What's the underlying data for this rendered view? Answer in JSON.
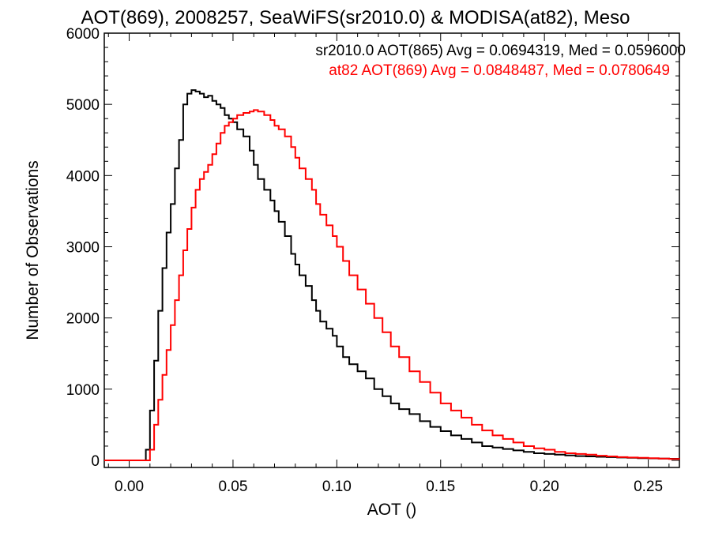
{
  "chart_data": {
    "type": "line",
    "title": "AOT(869), 2008257, SeaWiFS(sr2010.0) & MODISA(at82), Meso",
    "xlabel": "AOT ()",
    "ylabel": "Number of Observations",
    "xlim": [
      -0.012,
      0.265
    ],
    "ylim": [
      -100,
      6000
    ],
    "x_ticks": [
      0.0,
      0.05,
      0.1,
      0.15,
      0.2,
      0.25
    ],
    "x_tick_labels": [
      "0.00",
      "0.05",
      "0.10",
      "0.15",
      "0.20",
      "0.25"
    ],
    "y_ticks": [
      0,
      1000,
      2000,
      3000,
      4000,
      5000,
      6000
    ],
    "y_tick_labels": [
      "0",
      "1000",
      "2000",
      "3000",
      "4000",
      "5000",
      "6000"
    ],
    "grid": false,
    "legend_placement": "top-right",
    "series": [
      {
        "name": "sr2010.0 AOT(865) Avg = 0.0694319, Med = 0.0596000",
        "color": "#000000",
        "style": "step",
        "x": [
          -0.012,
          0.005,
          0.008,
          0.01,
          0.012,
          0.014,
          0.016,
          0.018,
          0.02,
          0.022,
          0.024,
          0.026,
          0.028,
          0.03,
          0.032,
          0.034,
          0.036,
          0.038,
          0.04,
          0.042,
          0.044,
          0.046,
          0.048,
          0.05,
          0.052,
          0.055,
          0.058,
          0.06,
          0.062,
          0.065,
          0.068,
          0.07,
          0.072,
          0.075,
          0.078,
          0.08,
          0.082,
          0.085,
          0.088,
          0.09,
          0.092,
          0.095,
          0.098,
          0.1,
          0.103,
          0.106,
          0.11,
          0.114,
          0.118,
          0.122,
          0.126,
          0.13,
          0.135,
          0.14,
          0.145,
          0.15,
          0.155,
          0.16,
          0.165,
          0.17,
          0.175,
          0.18,
          0.185,
          0.19,
          0.195,
          0.2,
          0.205,
          0.21,
          0.215,
          0.22,
          0.225,
          0.23,
          0.235,
          0.24,
          0.245,
          0.25,
          0.255,
          0.26,
          0.265
        ],
        "y": [
          0,
          0,
          150,
          700,
          1400,
          2100,
          2700,
          3200,
          3600,
          4100,
          4500,
          5000,
          5150,
          5200,
          5180,
          5150,
          5100,
          5120,
          5050,
          5000,
          4950,
          4850,
          4800,
          4750,
          4650,
          4550,
          4350,
          4150,
          3950,
          3800,
          3650,
          3500,
          3350,
          3150,
          2900,
          2750,
          2600,
          2450,
          2250,
          2100,
          1950,
          1850,
          1750,
          1600,
          1450,
          1350,
          1250,
          1150,
          1000,
          900,
          800,
          720,
          650,
          550,
          470,
          410,
          350,
          300,
          250,
          200,
          180,
          160,
          140,
          120,
          100,
          90,
          80,
          70,
          60,
          55,
          50,
          45,
          40,
          35,
          30,
          28,
          25,
          22,
          20
        ]
      },
      {
        "name": "at82 AOT(869) Avg = 0.0848487, Med = 0.0780649",
        "color": "#ff0000",
        "style": "step",
        "x": [
          -0.012,
          0.008,
          0.01,
          0.012,
          0.014,
          0.016,
          0.018,
          0.02,
          0.022,
          0.024,
          0.026,
          0.028,
          0.03,
          0.032,
          0.034,
          0.036,
          0.038,
          0.04,
          0.042,
          0.044,
          0.046,
          0.048,
          0.05,
          0.052,
          0.055,
          0.058,
          0.06,
          0.062,
          0.065,
          0.068,
          0.07,
          0.072,
          0.075,
          0.078,
          0.08,
          0.082,
          0.085,
          0.088,
          0.09,
          0.092,
          0.095,
          0.098,
          0.1,
          0.103,
          0.106,
          0.11,
          0.114,
          0.118,
          0.122,
          0.126,
          0.13,
          0.135,
          0.14,
          0.145,
          0.15,
          0.155,
          0.16,
          0.165,
          0.17,
          0.175,
          0.18,
          0.185,
          0.19,
          0.195,
          0.2,
          0.205,
          0.21,
          0.215,
          0.22,
          0.225,
          0.23,
          0.235,
          0.24,
          0.245,
          0.25,
          0.255,
          0.26,
          0.265
        ],
        "y": [
          0,
          0,
          150,
          500,
          850,
          1200,
          1550,
          1900,
          2250,
          2600,
          2950,
          3250,
          3550,
          3800,
          3950,
          4050,
          4150,
          4300,
          4450,
          4600,
          4700,
          4750,
          4800,
          4850,
          4880,
          4900,
          4920,
          4900,
          4850,
          4780,
          4700,
          4650,
          4550,
          4400,
          4250,
          4100,
          3950,
          3800,
          3600,
          3450,
          3300,
          3150,
          3000,
          2800,
          2600,
          2400,
          2200,
          2000,
          1800,
          1600,
          1450,
          1250,
          1100,
          950,
          800,
          700,
          600,
          500,
          420,
          350,
          300,
          250,
          200,
          170,
          150,
          120,
          100,
          90,
          80,
          65,
          55,
          45,
          40,
          35,
          30,
          25,
          20,
          18
        ]
      }
    ]
  }
}
